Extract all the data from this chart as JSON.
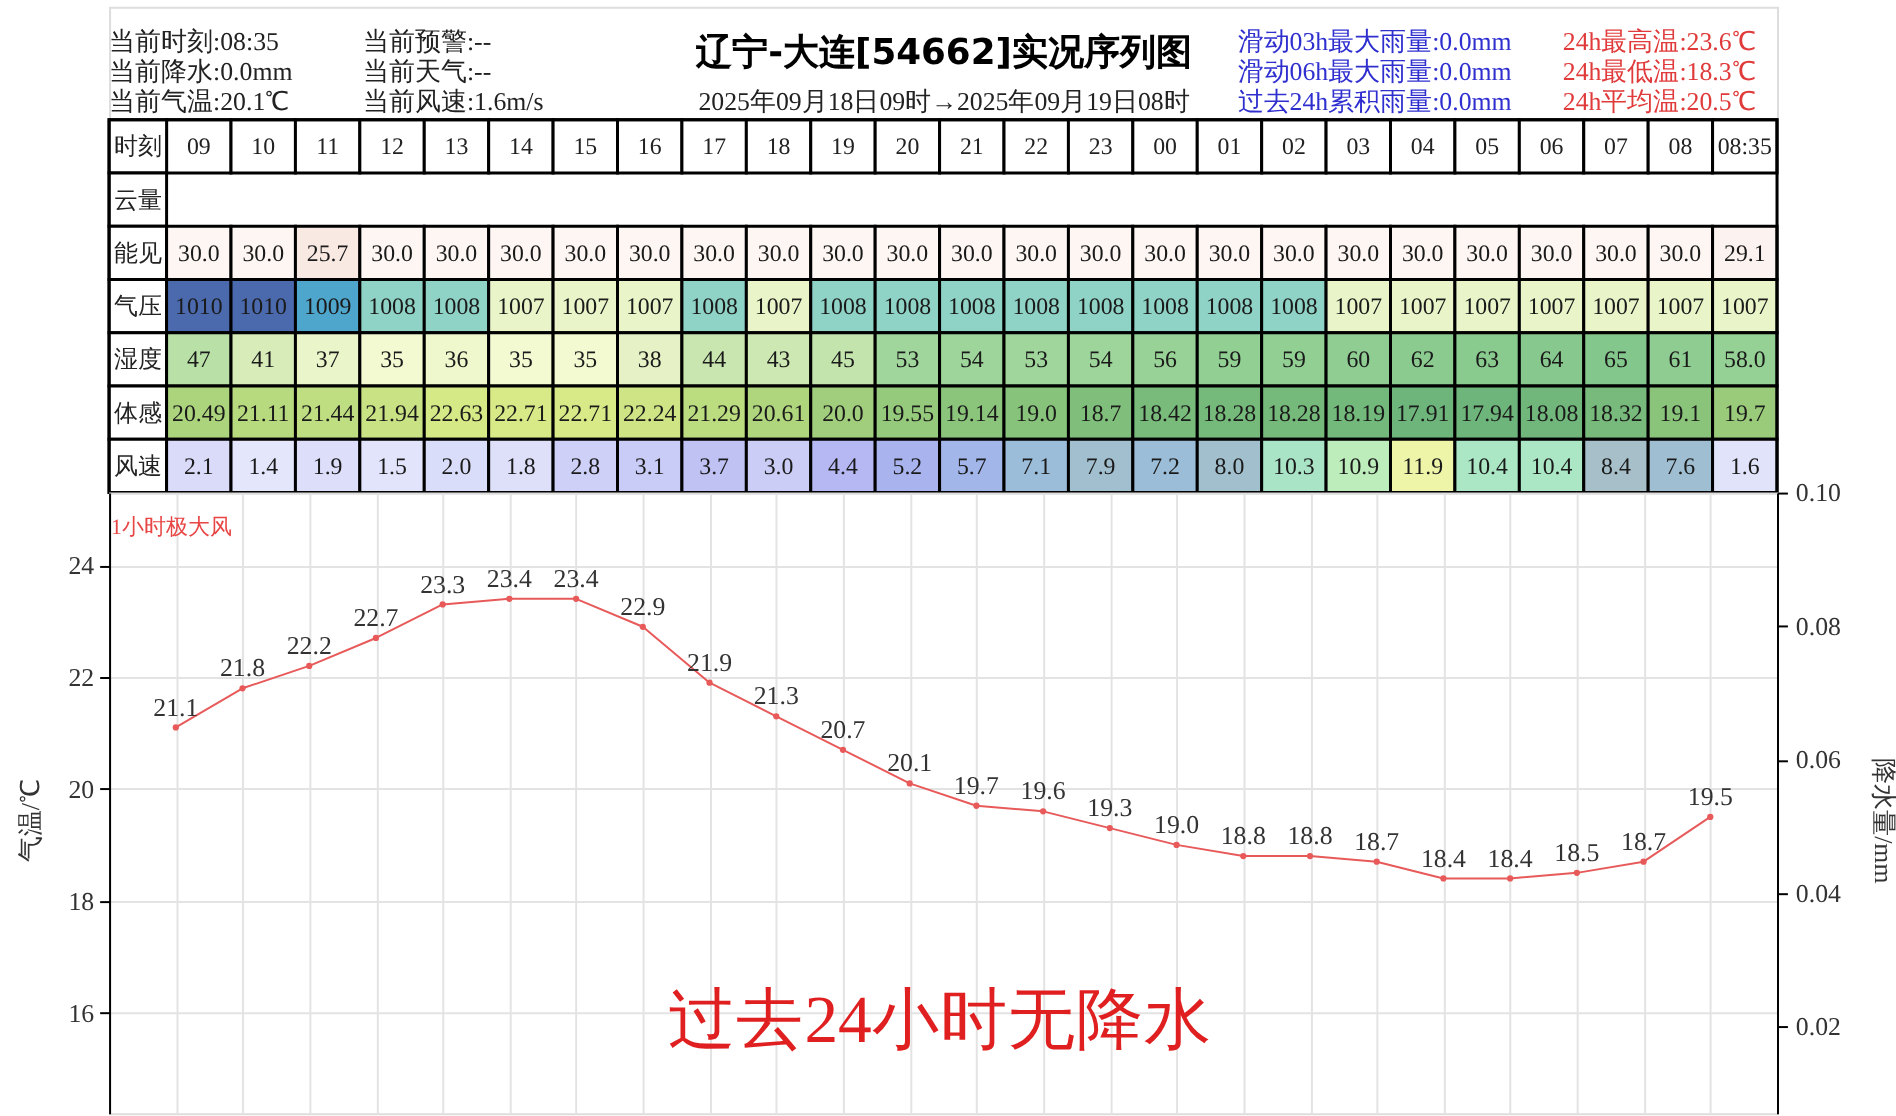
{
  "chart_data": [
    {
      "type": "heatmap",
      "title": "辽宁-大连[54662]实况序列图",
      "subtitle": "2025年09月18日09时→2025年09月19日08时",
      "annotations": [
        "当前时刻:08:35",
        "当前降水:0.0mm",
        "当前气温:20.1℃",
        "当前预警:--",
        "当前天气:--",
        "当前风速:1.6m/s",
        "滑动03h最大雨量:0.0mm",
        "滑动06h最大雨量:0.0mm",
        "过去24h累积雨量:0.0mm",
        "24h最高温:23.6℃",
        "24h最低温:18.3℃",
        "24h平均温:20.5℃"
      ],
      "xlabel": "时刻",
      "categories": [
        "09",
        "10",
        "11",
        "12",
        "13",
        "14",
        "15",
        "16",
        "17",
        "18",
        "19",
        "20",
        "21",
        "22",
        "23",
        "00",
        "01",
        "02",
        "03",
        "04",
        "05",
        "06",
        "07",
        "08",
        "08:35"
      ],
      "y_categories": [
        "云量",
        "能见",
        "气压",
        "湿度",
        "体感",
        "风速"
      ],
      "cells": [
        [
          null,
          null,
          null,
          null,
          null,
          null,
          null,
          null,
          null,
          null,
          null,
          null,
          null,
          null,
          null,
          null,
          null,
          null,
          null,
          null,
          null,
          null,
          null,
          null,
          null
        ],
        [
          30.0,
          30.0,
          25.7,
          30.0,
          30.0,
          30.0,
          30.0,
          30.0,
          30.0,
          30.0,
          30.0,
          30.0,
          30.0,
          30.0,
          30.0,
          30.0,
          30.0,
          30.0,
          30.0,
          30.0,
          30.0,
          30.0,
          30.0,
          30.0,
          29.1
        ],
        [
          1010,
          1010,
          1009,
          1008,
          1008,
          1007,
          1007,
          1007,
          1008,
          1007,
          1008,
          1008,
          1008,
          1008,
          1008,
          1008,
          1008,
          1008,
          1007,
          1007,
          1007,
          1007,
          1007,
          1007,
          1007
        ],
        [
          47,
          41,
          37,
          35,
          36,
          35,
          35,
          38,
          44,
          43,
          45,
          53,
          54,
          53,
          54,
          56,
          59,
          59,
          60,
          62,
          63,
          64,
          65,
          61,
          58.0
        ],
        [
          20.49,
          21.11,
          21.44,
          21.94,
          22.63,
          22.71,
          22.71,
          22.24,
          21.29,
          20.61,
          20.0,
          19.55,
          19.14,
          19.0,
          18.7,
          18.42,
          18.28,
          18.28,
          18.19,
          17.91,
          17.94,
          18.08,
          18.32,
          19.1,
          19.7
        ],
        [
          2.1,
          1.4,
          1.9,
          1.5,
          2.0,
          1.8,
          2.8,
          3.1,
          3.7,
          3.0,
          4.4,
          5.2,
          5.7,
          7.1,
          7.9,
          7.2,
          8.0,
          10.3,
          10.9,
          11.9,
          10.4,
          10.4,
          8.4,
          7.6,
          1.6
        ]
      ],
      "cell_labels": [
        [
          null,
          null,
          null,
          null,
          null,
          null,
          null,
          null,
          null,
          null,
          null,
          null,
          null,
          null,
          null,
          null,
          null,
          null,
          null,
          null,
          null,
          null,
          null,
          null,
          null
        ],
        [
          "30.0",
          "30.0",
          "25.7",
          "30.0",
          "30.0",
          "30.0",
          "30.0",
          "30.0",
          "30.0",
          "30.0",
          "30.0",
          "30.0",
          "30.0",
          "30.0",
          "30.0",
          "30.0",
          "30.0",
          "30.0",
          "30.0",
          "30.0",
          "30.0",
          "30.0",
          "30.0",
          "30.0",
          "29.1"
        ],
        [
          "1010",
          "1010",
          "1009",
          "1008",
          "1008",
          "1007",
          "1007",
          "1007",
          "1008",
          "1007",
          "1008",
          "1008",
          "1008",
          "1008",
          "1008",
          "1008",
          "1008",
          "1008",
          "1007",
          "1007",
          "1007",
          "1007",
          "1007",
          "1007",
          "1007"
        ],
        [
          "47",
          "41",
          "37",
          "35",
          "36",
          "35",
          "35",
          "38",
          "44",
          "43",
          "45",
          "53",
          "54",
          "53",
          "54",
          "56",
          "59",
          "59",
          "60",
          "62",
          "63",
          "64",
          "65",
          "61",
          "58.0"
        ],
        [
          "20.49",
          "21.11",
          "21.44",
          "21.94",
          "22.63",
          "22.71",
          "22.71",
          "22.24",
          "21.29",
          "20.61",
          "20.0",
          "19.55",
          "19.14",
          "19.0",
          "18.7",
          "18.42",
          "18.28",
          "18.28",
          "18.19",
          "17.91",
          "17.94",
          "18.08",
          "18.32",
          "19.1",
          "19.7"
        ],
        [
          "2.1",
          "1.4",
          "1.9",
          "1.5",
          "2.0",
          "1.8",
          "2.8",
          "3.1",
          "3.7",
          "3.0",
          "4.4",
          "5.2",
          "5.7",
          "7.1",
          "7.9",
          "7.2",
          "8.0",
          "10.3",
          "10.9",
          "11.9",
          "10.4",
          "10.4",
          "8.4",
          "7.6",
          "1.6"
        ]
      ]
    },
    {
      "type": "line",
      "ylabel": "气温/℃",
      "y2label": "降水量/mm",
      "categories": [
        null,
        null,
        null,
        null,
        null,
        null,
        null,
        null,
        null,
        null,
        null,
        null,
        null,
        null,
        null,
        null,
        null,
        null,
        null,
        null,
        null,
        null,
        null,
        null
      ],
      "series": [
        {
          "color": "#e85a5a",
          "values": [
            21.1,
            21.8,
            22.2,
            22.7,
            23.3,
            23.4,
            23.4,
            22.9,
            21.9,
            21.3,
            20.7,
            20.1,
            19.7,
            19.6,
            19.3,
            19.0,
            18.8,
            18.8,
            18.7,
            18.4,
            18.4,
            18.5,
            18.7,
            19.5
          ],
          "value_labels": [
            "21.1",
            "21.8",
            "22.2",
            "22.7",
            "23.3",
            "23.4",
            "23.4",
            "22.9",
            "21.9",
            "21.3",
            "20.7",
            "20.1",
            "19.7",
            "19.6",
            "19.3",
            "19.0",
            "18.8",
            "18.8",
            "18.7",
            "18.4",
            "18.4",
            "18.5",
            "18.7",
            "19.5"
          ]
        }
      ],
      "ylim": [
        14.2,
        25.3
      ],
      "yticks": [
        16,
        18,
        20,
        22,
        24
      ],
      "y2lim": [
        0.007,
        0.1
      ],
      "y2ticks": [
        0.02,
        0.04,
        0.06,
        0.08,
        {
          "value": 0.1,
          "label": "0.10"
        }
      ],
      "grid": true,
      "marker": "circle",
      "annotations": [
        "1小时极大风",
        "过去24小时无降水"
      ]
    }
  ]
}
